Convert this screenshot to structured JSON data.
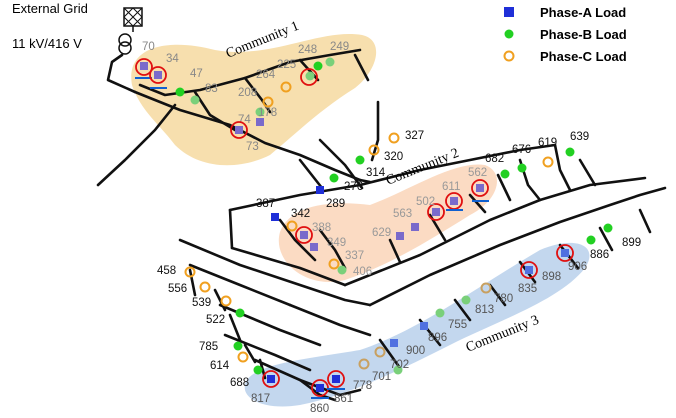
{
  "header": {
    "grid_label": "External Grid",
    "voltage_label": "11 kV/416 V"
  },
  "legend": [
    {
      "label": "Phase-A Load",
      "marker": "square",
      "color": "#1f2fd8"
    },
    {
      "label": "Phase-B Load",
      "marker": "dot",
      "color": "#22d022"
    },
    {
      "label": "Phase-C Load",
      "marker": "ring",
      "color": "#f0a020"
    }
  ],
  "communities": [
    {
      "label": "Community 1",
      "color": "#f6d9a0"
    },
    {
      "label": "Community 2",
      "color": "#fbd7bd"
    },
    {
      "label": "Community 3",
      "color": "#bcd3ec"
    }
  ],
  "colors": {
    "phase_a": "#1f2fd8",
    "phase_b": "#22d022",
    "phase_c": "#f0a020",
    "highlight": "#e01010",
    "underline": "#1060d0",
    "line": "#111111"
  },
  "nodes": [
    "70",
    "34",
    "47",
    "83",
    "208",
    "264",
    "225",
    "248",
    "249",
    "74",
    "178",
    "73",
    "327",
    "320",
    "314",
    "276",
    "289",
    "387",
    "342",
    "388",
    "349",
    "337",
    "406",
    "629",
    "563",
    "502",
    "611",
    "562",
    "682",
    "676",
    "619",
    "639",
    "458",
    "556",
    "539",
    "522",
    "785",
    "614",
    "688",
    "817",
    "860",
    "861",
    "778",
    "701",
    "702",
    "900",
    "896",
    "755",
    "813",
    "780",
    "835",
    "898",
    "906",
    "886",
    "899"
  ]
}
